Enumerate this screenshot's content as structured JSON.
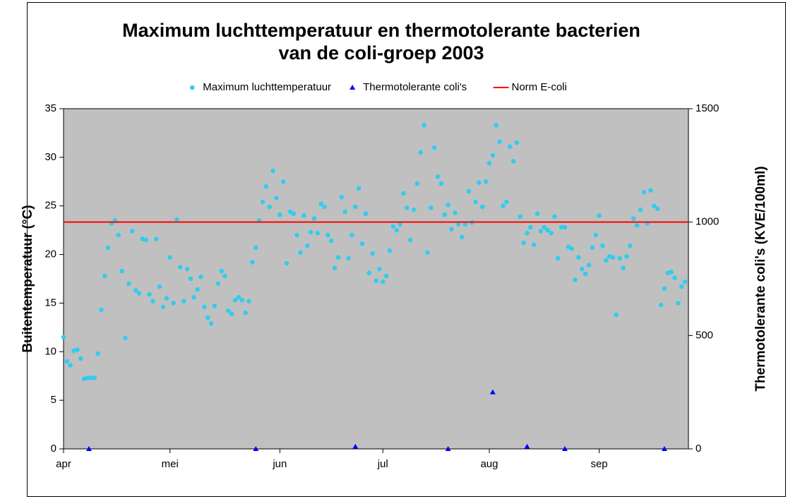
{
  "chart_data": {
    "type": "scatter",
    "title": [
      "Maximum luchttemperatuur en thermotolerante bacterien",
      "van de coli-groep 2003"
    ],
    "ylabel": "Buitentemperatuur (°C)",
    "y2label": "Thermotolerante coli's (KVE/100ml)",
    "xlim": [
      0,
      182
    ],
    "xticks": [
      {
        "value": 0,
        "label": "apr"
      },
      {
        "value": 31,
        "label": "mei"
      },
      {
        "value": 63,
        "label": "jun"
      },
      {
        "value": 93,
        "label": "jul"
      },
      {
        "value": 124,
        "label": "aug"
      },
      {
        "value": 156,
        "label": "sep"
      }
    ],
    "ylim": [
      0,
      35
    ],
    "yticks": [
      0,
      5,
      10,
      15,
      20,
      25,
      30,
      35
    ],
    "y2lim": [
      0,
      1500
    ],
    "y2ticks": [
      0,
      500,
      1000,
      1500
    ],
    "legend": "top",
    "series": [
      {
        "name": "Maximum luchttemperatuur",
        "color": "#33ccee",
        "marker": "circle",
        "x": [
          0,
          1,
          2,
          3,
          4,
          5,
          6,
          7,
          8,
          9,
          10,
          11,
          12,
          13,
          14,
          15,
          16,
          17,
          18,
          19,
          20,
          21,
          22,
          23,
          24,
          25,
          26,
          27,
          28,
          29,
          30,
          31,
          32,
          33,
          34,
          35,
          36,
          37,
          38,
          39,
          40,
          41,
          42,
          43,
          44,
          45,
          46,
          47,
          48,
          49,
          50,
          51,
          52,
          53,
          54,
          55,
          56,
          57,
          58,
          59,
          60,
          61,
          62,
          63,
          64,
          65,
          66,
          67,
          68,
          69,
          70,
          71,
          72,
          73,
          74,
          75,
          76,
          77,
          78,
          79,
          80,
          81,
          82,
          83,
          84,
          85,
          86,
          87,
          88,
          89,
          90,
          91,
          92,
          93,
          94,
          95,
          96,
          97,
          98,
          99,
          100,
          101,
          102,
          103,
          104,
          105,
          106,
          107,
          108,
          109,
          110,
          111,
          112,
          113,
          114,
          115,
          116,
          117,
          118,
          119,
          120,
          121,
          122,
          123,
          124,
          125,
          126,
          127,
          128,
          129,
          130,
          131,
          132,
          133,
          134,
          135,
          136,
          137,
          138,
          139,
          140,
          141,
          142,
          143,
          144,
          145,
          146,
          147,
          148,
          149,
          150,
          151,
          152,
          153,
          154,
          155,
          156,
          157,
          158,
          159,
          160,
          161,
          162,
          163,
          164,
          165,
          166,
          167,
          168,
          169,
          170,
          171,
          172,
          173,
          174,
          175,
          176,
          177,
          178,
          179,
          180,
          181
        ],
        "values": [
          11.5,
          9.0,
          8.6,
          10.1,
          10.2,
          9.3,
          7.2,
          7.3,
          7.3,
          7.3,
          9.8,
          14.3,
          17.8,
          20.7,
          23.2,
          23.5,
          22.0,
          18.3,
          11.4,
          17.0,
          22.4,
          16.3,
          16.0,
          21.6,
          21.5,
          15.9,
          15.2,
          21.6,
          16.7,
          14.6,
          15.5,
          19.7,
          15.0,
          23.6,
          18.7,
          15.2,
          18.5,
          17.5,
          15.6,
          16.4,
          17.7,
          14.6,
          13.5,
          12.9,
          14.7,
          17.0,
          18.3,
          17.8,
          14.2,
          13.9,
          15.3,
          15.6,
          15.3,
          14.0,
          15.2,
          19.2,
          20.7,
          23.5,
          25.4,
          27.0,
          24.9,
          28.6,
          25.8,
          24.1,
          27.5,
          19.1,
          24.4,
          24.2,
          22.0,
          20.2,
          24.0,
          20.9,
          22.3,
          23.7,
          22.2,
          25.2,
          24.9,
          22.0,
          21.4,
          18.6,
          19.7,
          25.9,
          24.4,
          19.6,
          22.0,
          24.9,
          26.8,
          21.1,
          24.2,
          18.1,
          20.1,
          17.3,
          18.5,
          17.2,
          17.8,
          20.4,
          22.9,
          22.5,
          23.1,
          26.3,
          24.8,
          21.5,
          24.6,
          27.3,
          30.5,
          33.3,
          20.2,
          24.8,
          31.0,
          28.0,
          27.3,
          24.1,
          25.1,
          22.6,
          24.3,
          23.1,
          21.8,
          23.1,
          26.5,
          23.3,
          25.4,
          27.4,
          24.9,
          27.5,
          29.4,
          30.2,
          33.3,
          31.6,
          25.0,
          25.4,
          31.1,
          29.6,
          31.5,
          23.9,
          21.2,
          22.2,
          22.8,
          21.0,
          24.2,
          22.4,
          22.8,
          22.5,
          22.2,
          23.9,
          19.6,
          22.8,
          22.8,
          20.8,
          20.6,
          17.4,
          19.7,
          18.5,
          18.0,
          18.9,
          20.7,
          22.0,
          24.0,
          20.9,
          19.4,
          19.8,
          19.7,
          13.8,
          19.6,
          18.6,
          19.8,
          20.9,
          23.7,
          23.0,
          24.6,
          26.4,
          23.2,
          26.6,
          25.0,
          24.7,
          14.8,
          16.5,
          18.1,
          18.2,
          17.6,
          15.0,
          16.7,
          17.2
        ]
      },
      {
        "name": "Thermotolerante coli's",
        "color": "#0000ff",
        "marker": "triangle",
        "axis": "y2",
        "x": [
          7.4,
          56,
          85,
          112,
          125,
          135,
          146,
          175
        ],
        "values": [
          0,
          0,
          10,
          0,
          250,
          10,
          0,
          0
        ]
      },
      {
        "name": "Norm E-coli",
        "color": "#ff0000",
        "marker": "line",
        "axis": "y2",
        "x": [
          0,
          182
        ],
        "values": [
          1000,
          1000
        ]
      }
    ]
  }
}
